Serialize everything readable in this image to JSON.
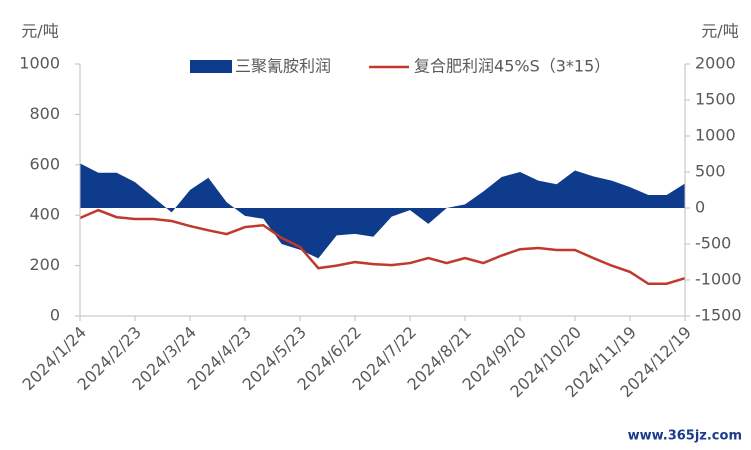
{
  "chart_data": {
    "type": "combo",
    "y_unit": "元/吨",
    "y2_unit": "元/吨",
    "categories": [
      "2024/1/24",
      null,
      null,
      "2024/2/23",
      null,
      null,
      "2024/3/24",
      null,
      null,
      "2024/4/23",
      null,
      null,
      "2024/5/23",
      null,
      null,
      "2024/6/22",
      null,
      null,
      "2024/7/22",
      null,
      null,
      "2024/8/21",
      null,
      null,
      "2024/9/20",
      null,
      null,
      "2024/10/20",
      null,
      null,
      "2024/11/19",
      null,
      null,
      "2024/12/19"
    ],
    "series": [
      {
        "name": "三聚氰胺利润",
        "type": "area",
        "axis": "y2",
        "color": "#0e3b8c",
        "values": [
          620,
          490,
          490,
          360,
          150,
          -60,
          250,
          420,
          80,
          -110,
          -150,
          -500,
          -580,
          -700,
          -380,
          -360,
          -400,
          -120,
          -30,
          -220,
          0,
          50,
          230,
          430,
          500,
          380,
          330,
          520,
          440,
          380,
          290,
          180,
          180,
          340
        ]
      },
      {
        "name": "复合肥利润45%S（3*15）",
        "type": "line",
        "axis": "y",
        "color": "#c0392b",
        "values": [
          389,
          420,
          392,
          385,
          385,
          377,
          357,
          340,
          325,
          353,
          360,
          310,
          274,
          190,
          200,
          214,
          206,
          202,
          210,
          230,
          210,
          230,
          210,
          240,
          265,
          270,
          262,
          262,
          230,
          200,
          175,
          128,
          128,
          150
        ]
      }
    ],
    "ylim": [
      0,
      1000
    ],
    "yticks": [
      0,
      200,
      400,
      600,
      800,
      1000
    ],
    "y2lim": [
      -1500,
      2000
    ],
    "y2ticks": [
      -1500,
      -1000,
      -500,
      0,
      500,
      1000,
      1500,
      2000
    ],
    "grid": false,
    "legend": "top"
  },
  "watermark": "www.365jz.com"
}
